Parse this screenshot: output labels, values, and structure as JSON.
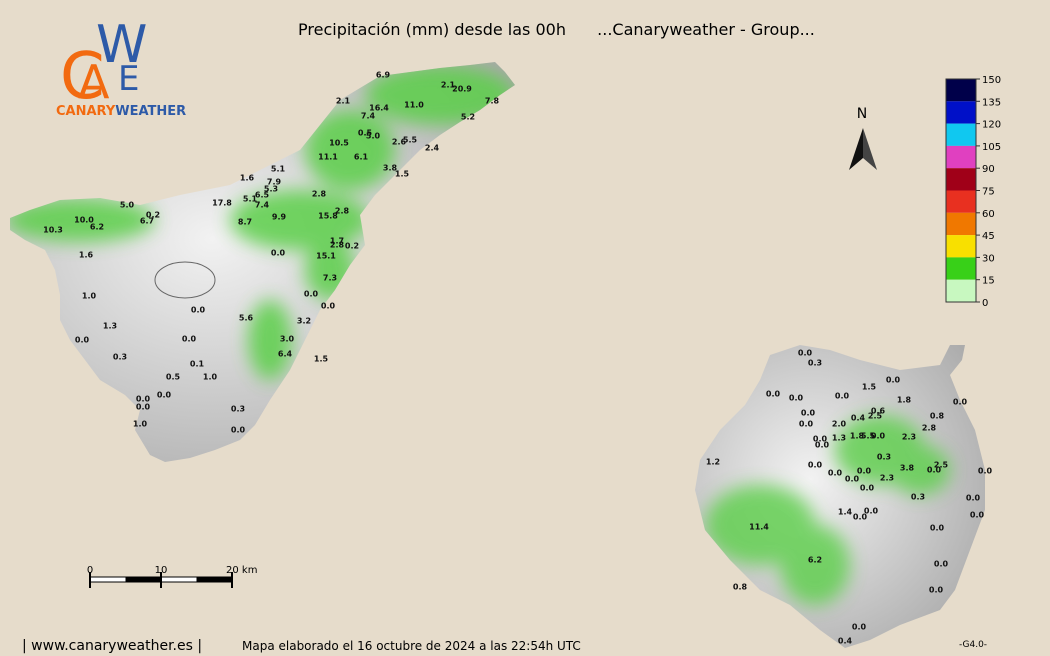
{
  "title": "Precipitación (mm) desde las 00h",
  "subtitle": "...Canaryweather - Group...",
  "logo": {
    "letters": [
      "C",
      "A",
      "W",
      "E"
    ],
    "brand_first": "CANARY",
    "brand_second": "WEATHER"
  },
  "north": "N",
  "legend": {
    "ticks": [
      150,
      135,
      120,
      105,
      90,
      75,
      60,
      45,
      30,
      15,
      0
    ],
    "colors": [
      "#00004a",
      "#0010c8",
      "#10c8f0",
      "#e040c0",
      "#a00018",
      "#e83020",
      "#f07800",
      "#f8e000",
      "#38d018",
      "#c8f8c0"
    ]
  },
  "scale": {
    "ticks": [
      0,
      10,
      {
        "value": 20,
        "label": "20 km"
      }
    ]
  },
  "stations": {
    "tenerife": [
      "6.9",
      "2.1",
      "20.9",
      "7.8",
      "2.1",
      "16.4",
      "11.0",
      "7.4",
      "5.2",
      "0.5",
      "5.0",
      "2.6",
      "5.5",
      "10.5",
      "2.4",
      "11.1",
      "6.1",
      "3.8",
      "1.5",
      "5.1",
      "1.6",
      "7.9",
      "5.3",
      "6.5",
      "5.1",
      "7.4",
      "2.8",
      "17.8",
      "5.0",
      "0.2",
      "6.7",
      "10.0",
      "9.9",
      "15.8",
      "2.8",
      "8.7",
      "6.2",
      "10.3",
      "1.7",
      "2.8",
      "0.2",
      "0.0",
      "15.1",
      "1.6",
      "7.3",
      "1.0",
      "0.0",
      "0.0",
      "0.0",
      "5.6",
      "3.2",
      "1.3",
      "0.0",
      "0.0",
      "3.0",
      "6.4",
      "0.3",
      "1.5",
      "0.1",
      "0.5",
      "1.0",
      "0.0",
      "0.0",
      "0.0",
      "0.3",
      "1.0",
      "0.0"
    ],
    "gran_canaria": [
      "0.0",
      "0.3",
      "1.5",
      "0.0",
      "0.0",
      "0.0",
      "0.0",
      "1.8",
      "0.0",
      "0.6",
      "0.4",
      "2.5",
      "0.8",
      "0.0",
      "0.0",
      "2.0",
      "2.8",
      "0.0",
      "1.3",
      "1.8",
      "5.5",
      "0.0",
      "2.3",
      "0.0",
      "0.3",
      "1.2",
      "0.0",
      "0.0",
      "3.8",
      "0.0",
      "2.5",
      "0.0",
      "0.0",
      "0.0",
      "2.3",
      "0.0",
      "0.3",
      "0.0",
      "1.4",
      "0.0",
      "0.0",
      "0.0",
      "11.4",
      "0.0",
      "6.2",
      "0.0",
      "0.8",
      "0.0",
      "0.0",
      "0.4"
    ]
  },
  "footer": {
    "site": "| www.canaryweather.es |",
    "note": "Mapa elaborado el 16 octubre de 2024 a las 22:54h UTC",
    "version": "-G4.0-"
  }
}
